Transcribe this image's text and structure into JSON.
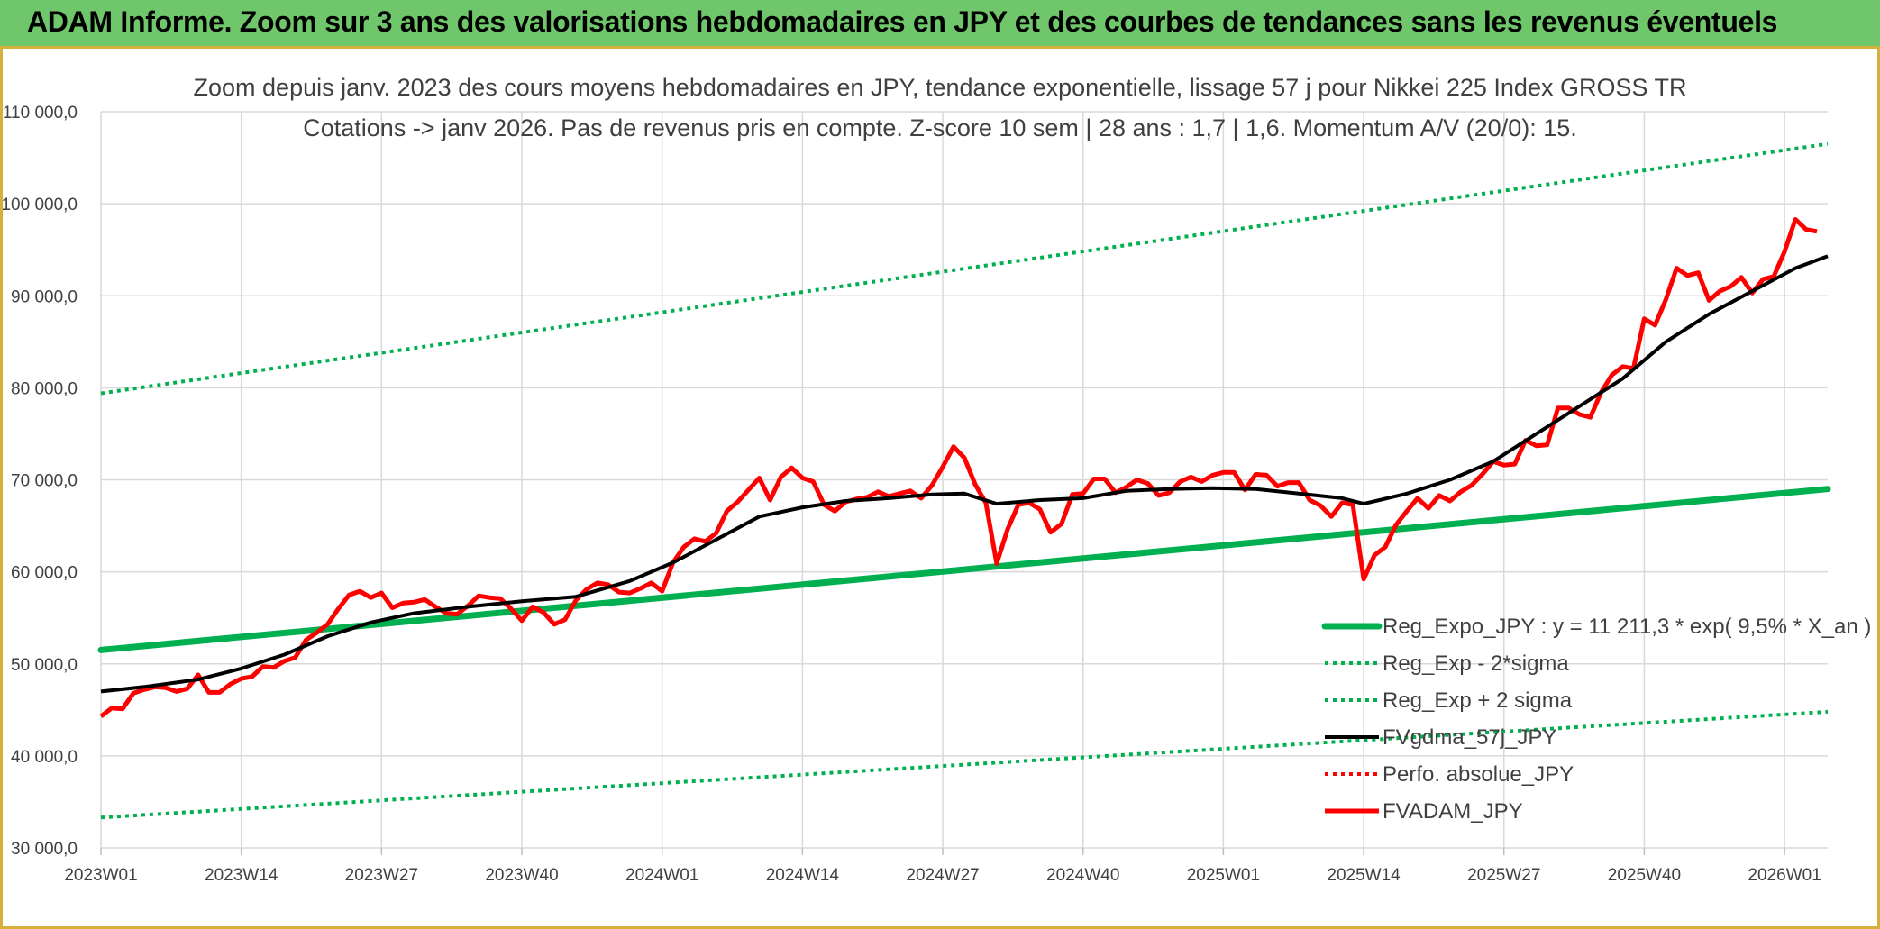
{
  "header": {
    "banner_title": "ADAM Informe. Zoom sur 3 ans des valorisations hebdomadaires en JPY et des courbes de tendances sans les revenus éventuels"
  },
  "chart_data": {
    "type": "line",
    "title": "Zoom depuis janv. 2023 des cours moyens hebdomadaires en JPY, tendance exponentielle, lissage 57 j pour Nikkei 225 Index GROSS TR",
    "subtitle": "Cotations -> janv 2026. Pas de revenus pris en compte. Z-score 10 sem | 28 ans : 1,7 | 1,6. Momentum A/V (20/0): 15.",
    "xlabel": "",
    "ylabel": "",
    "ylim": [
      30000,
      110000
    ],
    "yticks": [
      30000,
      40000,
      50000,
      60000,
      70000,
      80000,
      90000,
      100000,
      110000
    ],
    "ytick_labels": [
      "30 000,0",
      "40 000,0",
      "50 000,0",
      "60 000,0",
      "70 000,0",
      "80 000,0",
      "90 000,0",
      "100 000,0",
      "110 000,0"
    ],
    "xlim_weeks": [
      1,
      161
    ],
    "xticks": [
      {
        "label": "2023W01",
        "week": 1
      },
      {
        "label": "2023W14",
        "week": 14
      },
      {
        "label": "2023W27",
        "week": 27
      },
      {
        "label": "2023W40",
        "week": 40
      },
      {
        "label": "2024W01",
        "week": 53
      },
      {
        "label": "2024W14",
        "week": 66
      },
      {
        "label": "2024W27",
        "week": 79
      },
      {
        "label": "2024W40",
        "week": 92
      },
      {
        "label": "2025W01",
        "week": 105
      },
      {
        "label": "2025W14",
        "week": 118
      },
      {
        "label": "2025W27",
        "week": 131
      },
      {
        "label": "2025W40",
        "week": 144
      },
      {
        "label": "2026W01",
        "week": 157
      }
    ],
    "grid": true,
    "legend_position": "bottom-right",
    "series": [
      {
        "name": "Reg_Expo_JPY : y = 11 211,3 * exp( 9,5% *  X_an )",
        "color": "#00b050",
        "style": "solid-thick",
        "points": [
          [
            1,
            51500
          ],
          [
            161,
            69000
          ]
        ]
      },
      {
        "name": "Reg_Exp - 2*sigma",
        "color": "#00b050",
        "style": "dotted",
        "points": [
          [
            1,
            33300
          ],
          [
            161,
            44800
          ]
        ]
      },
      {
        "name": "Reg_Exp + 2 sigma",
        "color": "#00b050",
        "style": "dotted",
        "points": [
          [
            1,
            79400
          ],
          [
            161,
            106500
          ]
        ]
      },
      {
        "name": "FVgdma_57j_JPY",
        "color": "#000000",
        "style": "solid",
        "points": [
          [
            1,
            47000
          ],
          [
            5,
            47500
          ],
          [
            10,
            48300
          ],
          [
            14,
            49500
          ],
          [
            18,
            51000
          ],
          [
            22,
            53000
          ],
          [
            26,
            54500
          ],
          [
            30,
            55500
          ],
          [
            35,
            56200
          ],
          [
            40,
            56800
          ],
          [
            45,
            57300
          ],
          [
            50,
            59000
          ],
          [
            54,
            61000
          ],
          [
            58,
            63500
          ],
          [
            62,
            66000
          ],
          [
            66,
            67000
          ],
          [
            70,
            67700
          ],
          [
            74,
            68000
          ],
          [
            78,
            68400
          ],
          [
            81,
            68500
          ],
          [
            84,
            67400
          ],
          [
            88,
            67800
          ],
          [
            92,
            68000
          ],
          [
            96,
            68800
          ],
          [
            100,
            69000
          ],
          [
            104,
            69100
          ],
          [
            108,
            69000
          ],
          [
            112,
            68500
          ],
          [
            116,
            68000
          ],
          [
            118,
            67400
          ],
          [
            122,
            68500
          ],
          [
            126,
            70000
          ],
          [
            130,
            72000
          ],
          [
            134,
            75000
          ],
          [
            138,
            78000
          ],
          [
            142,
            81000
          ],
          [
            146,
            85000
          ],
          [
            150,
            88000
          ],
          [
            154,
            90500
          ],
          [
            158,
            93000
          ],
          [
            161,
            94300
          ]
        ]
      },
      {
        "name": "Perfo. absolue_JPY",
        "color": "#ff0000",
        "style": "dotted",
        "points": []
      },
      {
        "name": "FVADAM_JPY",
        "color": "#ff0000",
        "style": "solid",
        "points": [
          [
            1,
            44300
          ],
          [
            2,
            45200
          ],
          [
            3,
            45100
          ],
          [
            4,
            46800
          ],
          [
            5,
            47200
          ],
          [
            6,
            47500
          ],
          [
            7,
            47400
          ],
          [
            8,
            47000
          ],
          [
            9,
            47300
          ],
          [
            10,
            48800
          ],
          [
            11,
            46900
          ],
          [
            12,
            46900
          ],
          [
            13,
            47800
          ],
          [
            14,
            48400
          ],
          [
            15,
            48600
          ],
          [
            16,
            49700
          ],
          [
            17,
            49600
          ],
          [
            18,
            50300
          ],
          [
            19,
            50700
          ],
          [
            20,
            52600
          ],
          [
            21,
            53400
          ],
          [
            22,
            54300
          ],
          [
            23,
            56000
          ],
          [
            24,
            57500
          ],
          [
            25,
            57900
          ],
          [
            26,
            57200
          ],
          [
            27,
            57700
          ],
          [
            28,
            56100
          ],
          [
            29,
            56600
          ],
          [
            30,
            56700
          ],
          [
            31,
            57000
          ],
          [
            32,
            56200
          ],
          [
            33,
            55500
          ],
          [
            34,
            55400
          ],
          [
            35,
            56300
          ],
          [
            36,
            57400
          ],
          [
            37,
            57200
          ],
          [
            38,
            57100
          ],
          [
            39,
            56000
          ],
          [
            40,
            54700
          ],
          [
            41,
            56200
          ],
          [
            42,
            55600
          ],
          [
            43,
            54300
          ],
          [
            44,
            54800
          ],
          [
            45,
            56900
          ],
          [
            46,
            58100
          ],
          [
            47,
            58800
          ],
          [
            48,
            58600
          ],
          [
            49,
            57800
          ],
          [
            50,
            57700
          ],
          [
            51,
            58200
          ],
          [
            52,
            58800
          ],
          [
            53,
            57900
          ],
          [
            54,
            61000
          ],
          [
            55,
            62700
          ],
          [
            56,
            63600
          ],
          [
            57,
            63300
          ],
          [
            58,
            64200
          ],
          [
            59,
            66600
          ],
          [
            60,
            67600
          ],
          [
            61,
            68900
          ],
          [
            62,
            70200
          ],
          [
            63,
            67800
          ],
          [
            64,
            70300
          ],
          [
            65,
            71300
          ],
          [
            66,
            70200
          ],
          [
            67,
            69800
          ],
          [
            68,
            67300
          ],
          [
            69,
            66600
          ],
          [
            70,
            67600
          ],
          [
            71,
            67900
          ],
          [
            72,
            68100
          ],
          [
            73,
            68700
          ],
          [
            74,
            68200
          ],
          [
            75,
            68500
          ],
          [
            76,
            68800
          ],
          [
            77,
            68000
          ],
          [
            78,
            69400
          ],
          [
            79,
            71400
          ],
          [
            80,
            73600
          ],
          [
            81,
            72400
          ],
          [
            82,
            69500
          ],
          [
            83,
            67500
          ],
          [
            84,
            60900
          ],
          [
            85,
            64600
          ],
          [
            86,
            67300
          ],
          [
            87,
            67500
          ],
          [
            88,
            66800
          ],
          [
            89,
            64300
          ],
          [
            90,
            65200
          ],
          [
            91,
            68400
          ],
          [
            92,
            68500
          ],
          [
            93,
            70100
          ],
          [
            94,
            70100
          ],
          [
            95,
            68600
          ],
          [
            96,
            69200
          ],
          [
            97,
            70000
          ],
          [
            98,
            69600
          ],
          [
            99,
            68300
          ],
          [
            100,
            68600
          ],
          [
            101,
            69800
          ],
          [
            102,
            70300
          ],
          [
            103,
            69800
          ],
          [
            104,
            70500
          ],
          [
            105,
            70800
          ],
          [
            106,
            70800
          ],
          [
            107,
            68900
          ],
          [
            108,
            70600
          ],
          [
            109,
            70500
          ],
          [
            110,
            69300
          ],
          [
            111,
            69700
          ],
          [
            112,
            69700
          ],
          [
            113,
            67800
          ],
          [
            114,
            67200
          ],
          [
            115,
            66000
          ],
          [
            116,
            67500
          ],
          [
            117,
            67300
          ],
          [
            118,
            59200
          ],
          [
            119,
            61800
          ],
          [
            120,
            62700
          ],
          [
            121,
            65100
          ],
          [
            122,
            66600
          ],
          [
            123,
            68000
          ],
          [
            124,
            66900
          ],
          [
            125,
            68300
          ],
          [
            126,
            67700
          ],
          [
            127,
            68700
          ],
          [
            128,
            69400
          ],
          [
            129,
            70600
          ],
          [
            130,
            72000
          ],
          [
            131,
            71600
          ],
          [
            132,
            71700
          ],
          [
            133,
            74300
          ],
          [
            134,
            73700
          ],
          [
            135,
            73800
          ],
          [
            136,
            77800
          ],
          [
            137,
            77800
          ],
          [
            138,
            77100
          ],
          [
            139,
            76800
          ],
          [
            140,
            79500
          ],
          [
            141,
            81400
          ],
          [
            142,
            82300
          ],
          [
            143,
            82100
          ],
          [
            144,
            87500
          ],
          [
            145,
            86800
          ],
          [
            146,
            89600
          ],
          [
            147,
            93000
          ],
          [
            148,
            92200
          ],
          [
            149,
            92500
          ],
          [
            150,
            89500
          ],
          [
            151,
            90500
          ],
          [
            152,
            91000
          ],
          [
            153,
            92000
          ],
          [
            154,
            90300
          ],
          [
            155,
            91800
          ],
          [
            156,
            92100
          ],
          [
            157,
            94800
          ],
          [
            158,
            98300
          ],
          [
            159,
            97200
          ],
          [
            160,
            97000
          ]
        ]
      }
    ]
  }
}
